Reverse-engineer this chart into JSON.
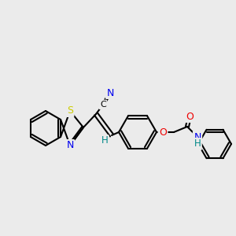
{
  "bg_color": "#ebebeb",
  "bond_color": "#000000",
  "atom_colors": {
    "N": "#0000ee",
    "S": "#cccc00",
    "O": "#ee0000",
    "H": "#008888",
    "C_label": "#000000"
  }
}
